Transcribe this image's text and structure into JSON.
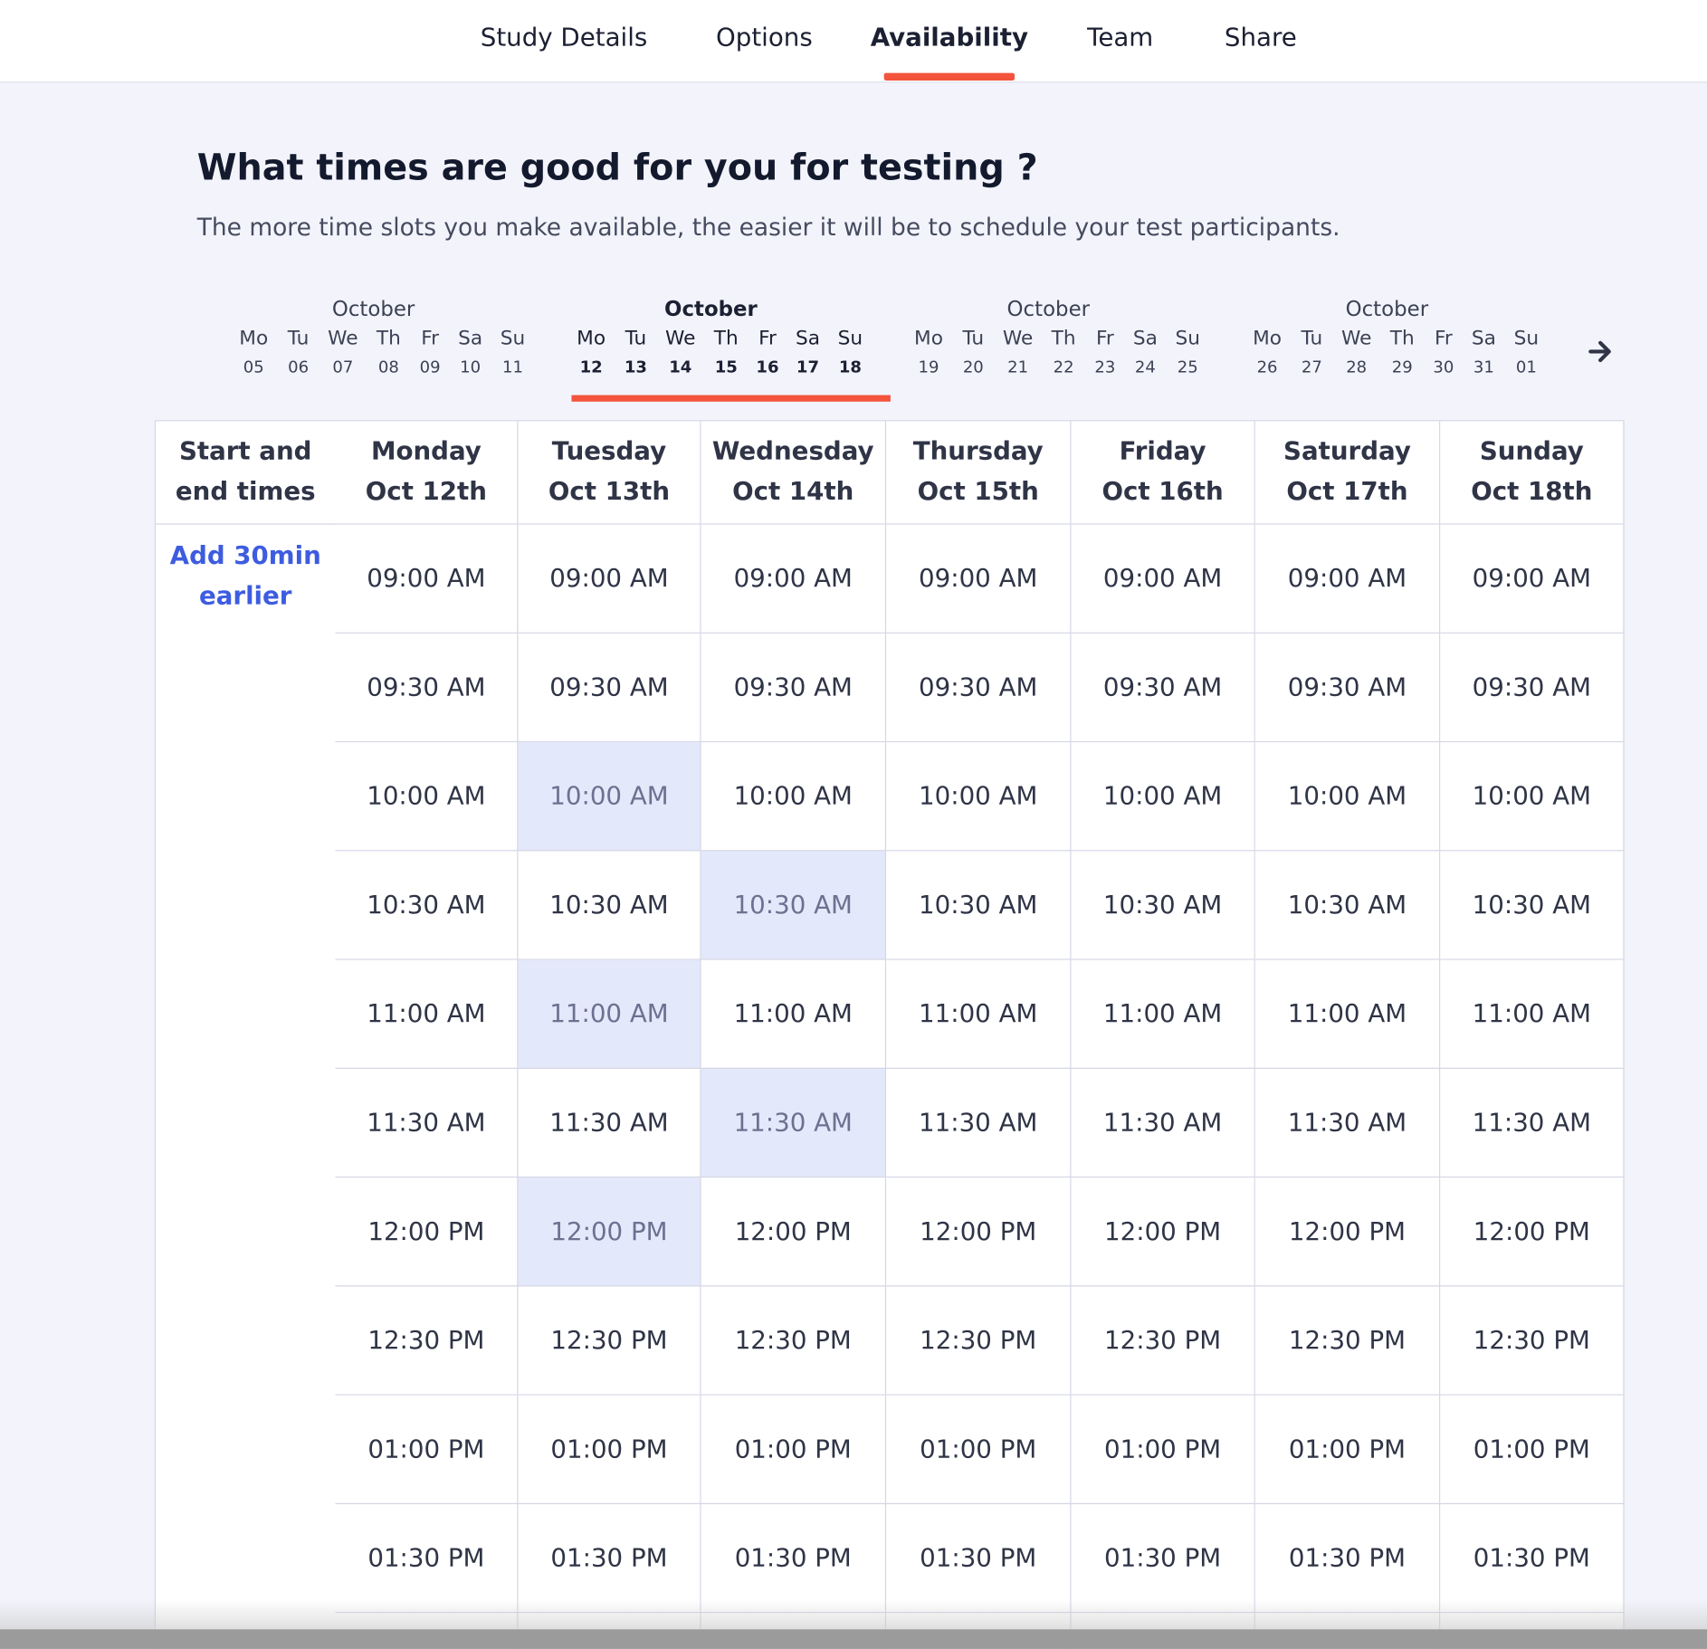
{
  "tabs": [
    "Study Details",
    "Options",
    "Availability",
    "Team",
    "Share"
  ],
  "active_tab": 2,
  "heading": "What times are good for you for testing ?",
  "subheading": "The more time slots you make available, the easier it will be to schedule your test participants.",
  "weeks": [
    {
      "month": "October",
      "days": [
        [
          "Mo",
          "05"
        ],
        [
          "Tu",
          "06"
        ],
        [
          "We",
          "07"
        ],
        [
          "Th",
          "08"
        ],
        [
          "Fr",
          "09"
        ],
        [
          "Sa",
          "10"
        ],
        [
          "Su",
          "11"
        ]
      ]
    },
    {
      "month": "October",
      "days": [
        [
          "Mo",
          "12"
        ],
        [
          "Tu",
          "13"
        ],
        [
          "We",
          "14"
        ],
        [
          "Th",
          "15"
        ],
        [
          "Fr",
          "16"
        ],
        [
          "Sa",
          "17"
        ],
        [
          "Su",
          "18"
        ]
      ]
    },
    {
      "month": "October",
      "days": [
        [
          "Mo",
          "19"
        ],
        [
          "Tu",
          "20"
        ],
        [
          "We",
          "21"
        ],
        [
          "Th",
          "22"
        ],
        [
          "Fr",
          "23"
        ],
        [
          "Sa",
          "24"
        ],
        [
          "Su",
          "25"
        ]
      ]
    },
    {
      "month": "October",
      "days": [
        [
          "Mo",
          "26"
        ],
        [
          "Tu",
          "27"
        ],
        [
          "We",
          "28"
        ],
        [
          "Th",
          "29"
        ],
        [
          "Fr",
          "30"
        ],
        [
          "Sa",
          "31"
        ],
        [
          "Su",
          "01"
        ]
      ]
    }
  ],
  "selected_week": 1,
  "table": {
    "corner": [
      "Start and",
      "end times"
    ],
    "columns": [
      [
        "Monday",
        "Oct 12th"
      ],
      [
        "Tuesday",
        "Oct 13th"
      ],
      [
        "Wednesday",
        "Oct 14th"
      ],
      [
        "Thursday",
        "Oct 15th"
      ],
      [
        "Friday",
        "Oct 16th"
      ],
      [
        "Saturday",
        "Oct 17th"
      ],
      [
        "Sunday",
        "Oct 18th"
      ]
    ],
    "add_earlier": [
      "Add 30min",
      "earlier"
    ],
    "times": [
      "09:00 AM",
      "09:30 AM",
      "10:00 AM",
      "10:30 AM",
      "11:00 AM",
      "11:30 AM",
      "12:00 PM",
      "12:30 PM",
      "01:00 PM",
      "01:30 PM"
    ],
    "selected": [
      [
        2,
        1
      ],
      [
        3,
        2
      ],
      [
        4,
        1
      ],
      [
        5,
        2
      ],
      [
        6,
        1
      ]
    ]
  }
}
